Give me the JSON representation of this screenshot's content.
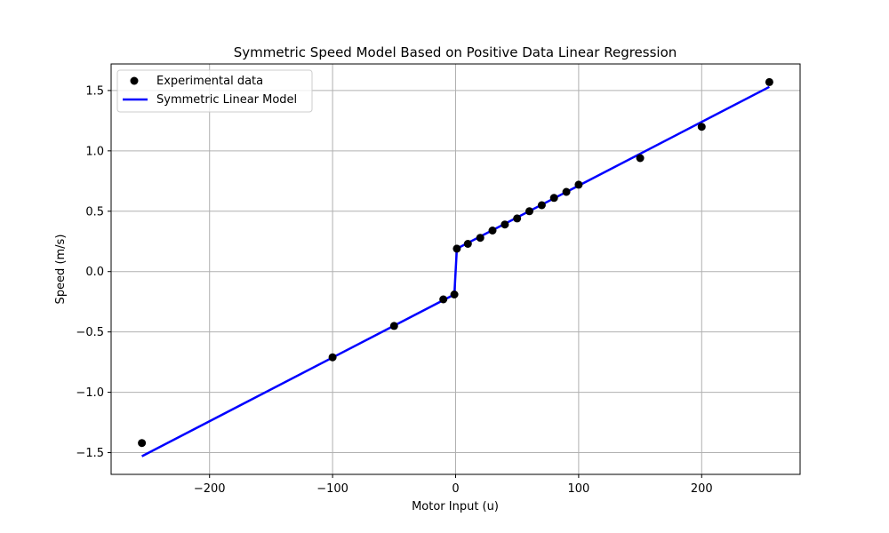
{
  "chart_data": {
    "type": "scatter",
    "title": "Symmetric Speed Model Based on Positive Data Linear Regression",
    "xlabel": "Motor Input (u)",
    "ylabel": "Speed (m/s)",
    "xlim": [
      -280,
      280
    ],
    "ylim": [
      -1.68,
      1.72
    ],
    "xticks": [
      -200,
      -100,
      0,
      100,
      200
    ],
    "xtick_labels": [
      "−200",
      "−100",
      "0",
      "100",
      "200"
    ],
    "yticks": [
      -1.5,
      -1.0,
      -0.5,
      0.0,
      0.5,
      1.0,
      1.5
    ],
    "ytick_labels": [
      "−1.5",
      "−1.0",
      "−0.5",
      "0.0",
      "0.5",
      "1.0",
      "1.5"
    ],
    "grid": true,
    "legend_position": "top-left",
    "series": [
      {
        "name": "Experimental data",
        "kind": "scatter",
        "color": "#000000",
        "x": [
          -255,
          -100,
          -50,
          -10,
          -1,
          1,
          10,
          20,
          30,
          40,
          50,
          60,
          70,
          80,
          90,
          100,
          150,
          200,
          255
        ],
        "y": [
          -1.42,
          -0.71,
          -0.45,
          -0.23,
          -0.19,
          0.19,
          0.23,
          0.28,
          0.34,
          0.39,
          0.44,
          0.5,
          0.55,
          0.61,
          0.66,
          0.72,
          0.94,
          1.2,
          1.57
        ]
      },
      {
        "name": "Symmetric Linear Model",
        "kind": "line",
        "color": "#0000ff",
        "x": [
          -255,
          -1,
          1,
          255
        ],
        "y": [
          -1.53,
          -0.19,
          0.19,
          1.53
        ]
      }
    ]
  }
}
